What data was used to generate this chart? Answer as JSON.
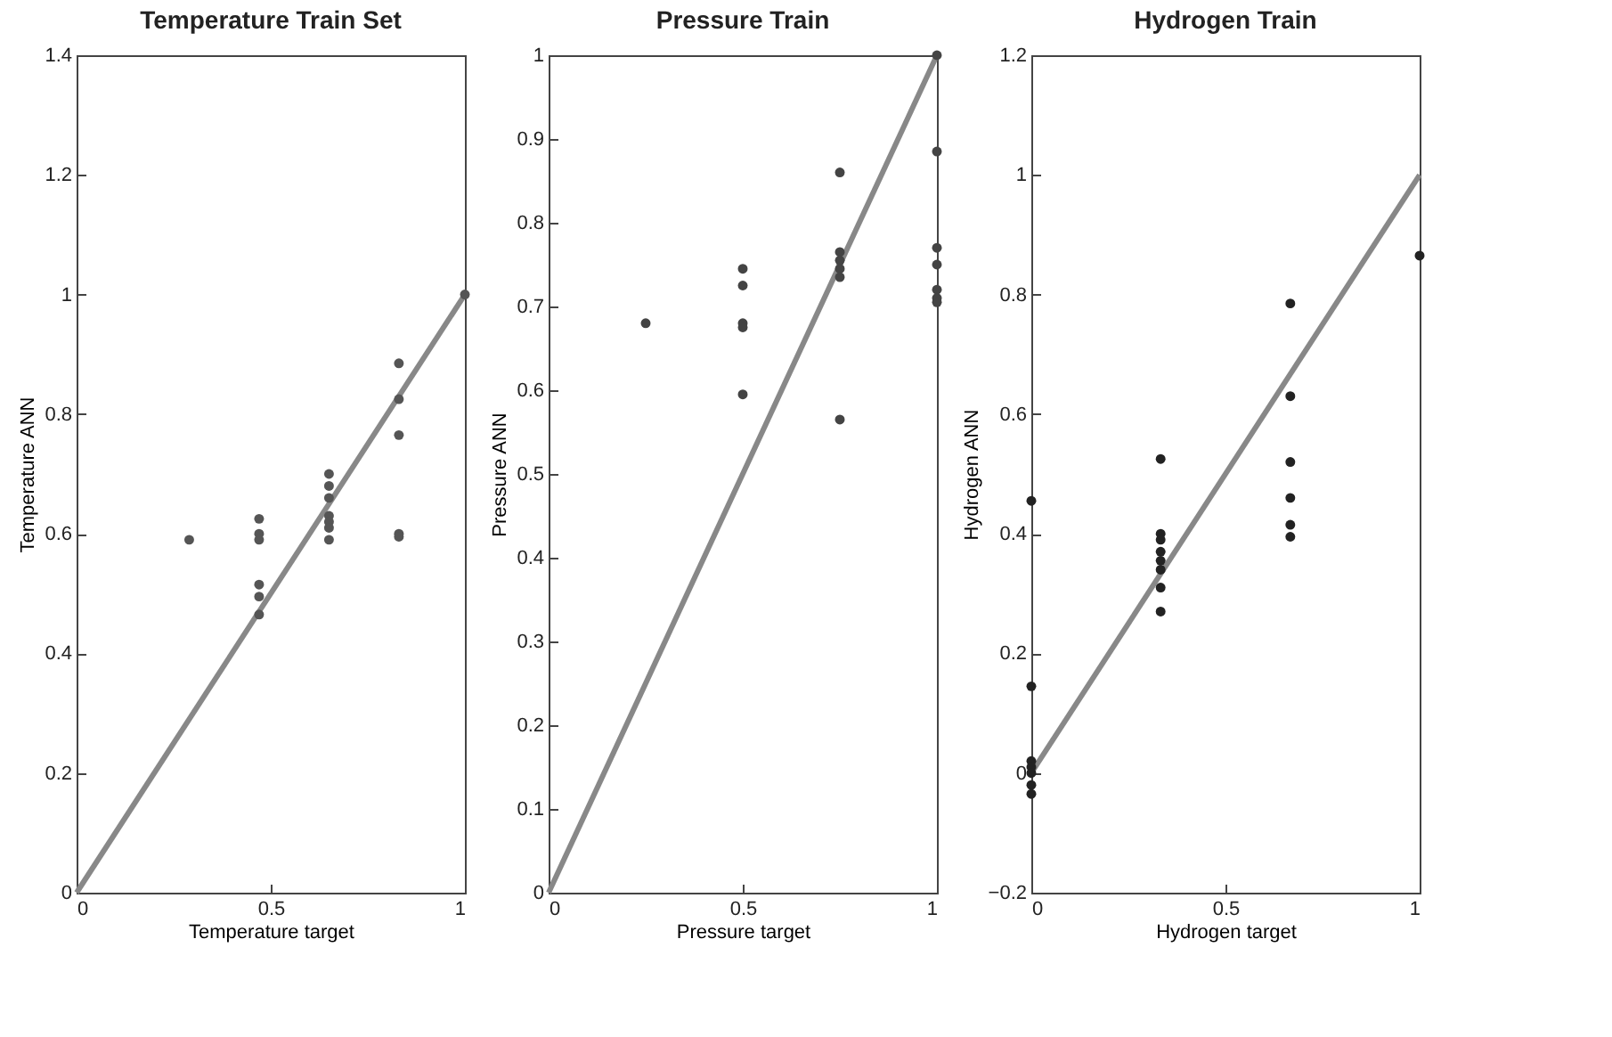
{
  "chart_data": [
    {
      "type": "scatter",
      "title": "Temperature Train Set",
      "xlabel": "Temperature target",
      "ylabel": "Temperature ANN",
      "xlim": [
        0,
        1
      ],
      "ylim": [
        0,
        1.4
      ],
      "xticks": [
        0,
        0.5,
        1
      ],
      "yticks": [
        0,
        0.2,
        0.4,
        0.6,
        0.8,
        1,
        1.2,
        1.4
      ],
      "series": [
        {
          "type": "scatter",
          "marker": "circle",
          "color": "#555555",
          "x": [
            0.29,
            0.47,
            0.47,
            0.47,
            0.47,
            0.47,
            0.47,
            0.65,
            0.65,
            0.65,
            0.65,
            0.65,
            0.65,
            0.65,
            0.83,
            0.83,
            0.83,
            0.83,
            0.83,
            1
          ],
          "values": [
            0.59,
            0.625,
            0.6,
            0.59,
            0.515,
            0.495,
            0.465,
            0.7,
            0.68,
            0.66,
            0.63,
            0.62,
            0.61,
            0.59,
            0.885,
            0.825,
            0.765,
            0.6,
            0.595,
            1
          ]
        },
        {
          "type": "line",
          "color": "#888888",
          "x": [
            0,
            1
          ],
          "values": [
            0,
            1
          ]
        }
      ]
    },
    {
      "type": "scatter",
      "title": "Pressure Train",
      "xlabel": "Pressure target",
      "ylabel": "Pressure ANN",
      "xlim": [
        0,
        1
      ],
      "ylim": [
        0,
        1
      ],
      "xticks": [
        0,
        0.5,
        1
      ],
      "yticks": [
        0,
        0.1,
        0.2,
        0.3,
        0.4,
        0.5,
        0.6,
        0.7,
        0.8,
        0.9,
        1
      ],
      "series": [
        {
          "type": "scatter",
          "marker": "circle",
          "color": "#444444",
          "x": [
            0.25,
            0.5,
            0.5,
            0.5,
            0.5,
            0.5,
            0.75,
            0.75,
            0.75,
            0.75,
            0.75,
            0.75,
            1,
            1,
            1,
            1,
            1,
            1,
            1
          ],
          "values": [
            0.68,
            0.745,
            0.725,
            0.68,
            0.675,
            0.595,
            0.86,
            0.765,
            0.755,
            0.745,
            0.735,
            0.565,
            1,
            0.885,
            0.77,
            0.75,
            0.72,
            0.71,
            0.705
          ]
        },
        {
          "type": "line",
          "color": "#888888",
          "x": [
            0,
            1
          ],
          "values": [
            0,
            1
          ]
        }
      ]
    },
    {
      "type": "scatter",
      "title": "Hydrogen Train",
      "xlabel": "Hydrogen target",
      "ylabel": "Hydrogen ANN",
      "xlim": [
        0,
        1
      ],
      "ylim": [
        -0.2,
        1.2
      ],
      "xticks": [
        0,
        0.5,
        1
      ],
      "yticks": [
        -0.2,
        0,
        0.2,
        0.4,
        0.6,
        0.8,
        1,
        1.2
      ],
      "series": [
        {
          "type": "scatter",
          "marker": "circle",
          "color": "#222222",
          "x": [
            0,
            0,
            0,
            0,
            0,
            0,
            0,
            0.333,
            0.333,
            0.333,
            0.333,
            0.333,
            0.333,
            0.333,
            0.333,
            0.667,
            0.667,
            0.667,
            0.667,
            0.667,
            0.667,
            1
          ],
          "values": [
            0.455,
            0.145,
            0.02,
            0.01,
            0,
            -0.02,
            -0.035,
            0.525,
            0.4,
            0.39,
            0.37,
            0.355,
            0.34,
            0.31,
            0.27,
            0.785,
            0.63,
            0.52,
            0.46,
            0.415,
            0.395,
            0.865
          ]
        },
        {
          "type": "line",
          "color": "#888888",
          "x": [
            0,
            1
          ],
          "values": [
            0,
            1
          ]
        }
      ]
    }
  ]
}
